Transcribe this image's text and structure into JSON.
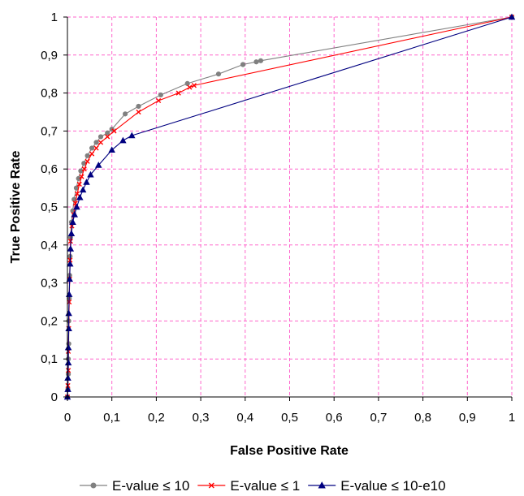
{
  "chart_data": {
    "type": "line",
    "xlabel": "False Positive Rate",
    "ylabel": "True Positive Rate",
    "xlim": [
      0,
      1
    ],
    "ylim": [
      0,
      1
    ],
    "x_ticks": [
      "0",
      "0,1",
      "0,2",
      "0,3",
      "0,4",
      "0,5",
      "0,6",
      "0,7",
      "0,8",
      "0,9",
      "1"
    ],
    "y_ticks": [
      "0",
      "0,1",
      "0,2",
      "0,3",
      "0,4",
      "0,5",
      "0,6",
      "0,7",
      "0,8",
      "0,9",
      "1"
    ],
    "grid": true,
    "grid_style": "dashed",
    "grid_color": "#ff66cc",
    "legend_position": "bottom",
    "series": [
      {
        "name": "E-value ≤ 10",
        "color": "#808080",
        "marker": "circle",
        "points": [
          [
            0,
            0
          ],
          [
            0.001,
            0.02
          ],
          [
            0.002,
            0.06
          ],
          [
            0.002,
            0.1
          ],
          [
            0.003,
            0.14
          ],
          [
            0.003,
            0.2
          ],
          [
            0.004,
            0.26
          ],
          [
            0.005,
            0.32
          ],
          [
            0.006,
            0.37
          ],
          [
            0.007,
            0.42
          ],
          [
            0.009,
            0.46
          ],
          [
            0.012,
            0.49
          ],
          [
            0.015,
            0.52
          ],
          [
            0.02,
            0.55
          ],
          [
            0.025,
            0.575
          ],
          [
            0.03,
            0.595
          ],
          [
            0.037,
            0.615
          ],
          [
            0.045,
            0.635
          ],
          [
            0.055,
            0.655
          ],
          [
            0.065,
            0.67
          ],
          [
            0.075,
            0.685
          ],
          [
            0.09,
            0.695
          ],
          [
            0.1,
            0.705
          ],
          [
            0.13,
            0.745
          ],
          [
            0.16,
            0.765
          ],
          [
            0.21,
            0.795
          ],
          [
            0.27,
            0.825
          ],
          [
            0.34,
            0.85
          ],
          [
            0.395,
            0.875
          ],
          [
            0.425,
            0.882
          ],
          [
            0.435,
            0.885
          ],
          [
            1.0,
            1.0
          ]
        ]
      },
      {
        "name": "E-value ≤ 1",
        "color": "#ff0000",
        "marker": "x",
        "points": [
          [
            0,
            0
          ],
          [
            0.001,
            0.03
          ],
          [
            0.002,
            0.07
          ],
          [
            0.002,
            0.12
          ],
          [
            0.003,
            0.18
          ],
          [
            0.004,
            0.25
          ],
          [
            0.005,
            0.31
          ],
          [
            0.006,
            0.36
          ],
          [
            0.007,
            0.41
          ],
          [
            0.01,
            0.45
          ],
          [
            0.014,
            0.48
          ],
          [
            0.018,
            0.51
          ],
          [
            0.022,
            0.535
          ],
          [
            0.027,
            0.56
          ],
          [
            0.032,
            0.58
          ],
          [
            0.038,
            0.6
          ],
          [
            0.045,
            0.62
          ],
          [
            0.055,
            0.64
          ],
          [
            0.065,
            0.655
          ],
          [
            0.075,
            0.67
          ],
          [
            0.09,
            0.685
          ],
          [
            0.105,
            0.7
          ],
          [
            0.16,
            0.75
          ],
          [
            0.205,
            0.78
          ],
          [
            0.25,
            0.8
          ],
          [
            0.275,
            0.815
          ],
          [
            0.285,
            0.82
          ],
          [
            1.0,
            1.0
          ]
        ]
      },
      {
        "name": "E-value ≤ 10-e10",
        "color": "#000080",
        "marker": "triangle",
        "points": [
          [
            0,
            0
          ],
          [
            0.001,
            0.02
          ],
          [
            0.001,
            0.05
          ],
          [
            0.002,
            0.09
          ],
          [
            0.002,
            0.13
          ],
          [
            0.003,
            0.18
          ],
          [
            0.003,
            0.22
          ],
          [
            0.004,
            0.27
          ],
          [
            0.005,
            0.31
          ],
          [
            0.006,
            0.35
          ],
          [
            0.007,
            0.39
          ],
          [
            0.009,
            0.43
          ],
          [
            0.012,
            0.46
          ],
          [
            0.016,
            0.48
          ],
          [
            0.021,
            0.5
          ],
          [
            0.028,
            0.525
          ],
          [
            0.035,
            0.545
          ],
          [
            0.043,
            0.565
          ],
          [
            0.052,
            0.585
          ],
          [
            0.07,
            0.61
          ],
          [
            0.1,
            0.65
          ],
          [
            0.125,
            0.675
          ],
          [
            0.145,
            0.688
          ],
          [
            1.0,
            1.0
          ]
        ]
      }
    ]
  }
}
